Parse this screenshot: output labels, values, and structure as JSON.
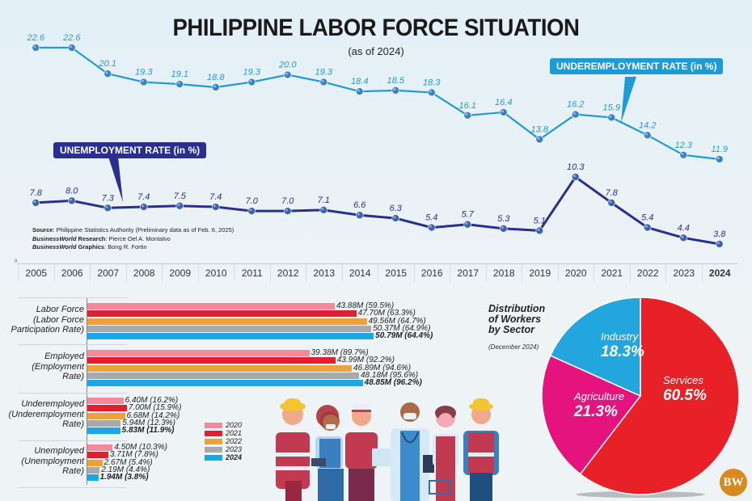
{
  "header": {
    "title": "PHILIPPINE LABOR FORCE SITUATION",
    "subtitle": "(as of 2024)"
  },
  "callouts": {
    "underemployment": "UNDEREMPLOYMENT RATE (in %)",
    "unemployment": "UNEMPLOYMENT RATE (in %)"
  },
  "source": {
    "source_label": "Source",
    "source_text": ": Philippine Statistics Authority (Preliminary data as of Feb. 6, 2025)",
    "research_brand": "BusinessWorld",
    "research_label": " Research",
    "research_text": ": Pierce Oel A. Montalvo",
    "graphics_brand": "BusinessWorld",
    "graphics_label": " Graphics",
    "graphics_text": ": Bong R. Fortin"
  },
  "axis_zero": "0",
  "years": [
    "2005",
    "2006",
    "2007",
    "2008",
    "2009",
    "2010",
    "2011",
    "2012",
    "2013",
    "2014",
    "2015",
    "2016",
    "2017",
    "2018",
    "2019",
    "2020",
    "2021",
    "2022",
    "2023",
    "2024"
  ],
  "bar_groups": [
    {
      "label_line1": "Labor Force",
      "label_line2": "(Labor Force",
      "label_line3": "Participation Rate)"
    },
    {
      "label_line1": "Employed",
      "label_line2": "(Employment",
      "label_line3": "Rate)"
    },
    {
      "label_line1": "Underemployed",
      "label_line2": "(Underemployment",
      "label_line3": "Rate)"
    },
    {
      "label_line1": "Unemployed",
      "label_line2": "(Unemployment",
      "label_line3": "Rate)"
    }
  ],
  "legend": [
    {
      "label": "2020",
      "color": "#f4899e"
    },
    {
      "label": "2021",
      "color": "#e0202e"
    },
    {
      "label": "2022",
      "color": "#eda13a"
    },
    {
      "label": "2023",
      "color": "#a8a9ad"
    },
    {
      "label": "2024",
      "color": "#1aa7e6"
    }
  ],
  "pie": {
    "title_line1": "Distribution",
    "title_line2": "of Workers",
    "title_line3": "by Sector",
    "subtitle": "(December 2024)"
  },
  "logo": "BW",
  "chart_data": [
    {
      "type": "line",
      "title": "PHILIPPINE LABOR FORCE SITUATION (as of 2024)",
      "x": [
        "2005",
        "2006",
        "2007",
        "2008",
        "2009",
        "2010",
        "2011",
        "2012",
        "2013",
        "2014",
        "2015",
        "2016",
        "2017",
        "2018",
        "2019",
        "2020",
        "2021",
        "2022",
        "2023",
        "2024"
      ],
      "xlabel": "",
      "ylabel": "%",
      "grid": false,
      "series": [
        {
          "name": "UNDEREMPLOYMENT RATE (in %)",
          "color": "#1e9bd7",
          "values": [
            22.6,
            22.6,
            20.1,
            19.3,
            19.1,
            18.8,
            19.3,
            20.0,
            19.3,
            18.4,
            18.5,
            18.3,
            16.1,
            16.4,
            13.8,
            16.2,
            15.9,
            14.2,
            12.3,
            11.9
          ],
          "labels": [
            "22.6",
            "22.6",
            "20.1",
            "19.3",
            "19.1",
            "18.8",
            "19.3",
            "20.0",
            "19.3",
            "18.4",
            "18.5",
            "18.3",
            "16.1",
            "16.4",
            "13.8",
            "16.2",
            "15.9",
            "14.2",
            "12.3",
            "11.9"
          ]
        },
        {
          "name": "UNEMPLOYMENT RATE (in %)",
          "color": "#2a2f8f",
          "values": [
            7.8,
            8.0,
            7.3,
            7.4,
            7.5,
            7.4,
            7.0,
            7.0,
            7.1,
            6.6,
            6.3,
            5.4,
            5.7,
            5.3,
            5.1,
            10.3,
            7.8,
            5.4,
            4.4,
            3.8
          ],
          "labels": [
            "7.8",
            "8.0",
            "7.3",
            "7.4",
            "7.5",
            "7.4",
            "7.0",
            "7.0",
            "7.1",
            "6.6",
            "6.3",
            "5.4",
            "5.7",
            "5.3",
            "5.1",
            "10.3",
            "7.8",
            "5.4",
            "4.4",
            "3.8"
          ]
        }
      ]
    },
    {
      "type": "bar",
      "orientation": "horizontal",
      "categories": [
        "Labor Force (Labor Force Participation Rate)",
        "Employed (Employment Rate)",
        "Underemployed (Underemployment Rate)",
        "Unemployed (Unemployment Rate)"
      ],
      "unit": "million persons (rate %)",
      "series": [
        {
          "name": "2020",
          "color": "#f4899e",
          "values": [
            43.88,
            39.38,
            6.4,
            4.5
          ],
          "rates": [
            59.5,
            89.7,
            16.2,
            10.3
          ],
          "labels": [
            "43.88M (59.5%)",
            "39.38M (89.7%)",
            "6.40M (16.2%)",
            "4.50M (10.3%)"
          ]
        },
        {
          "name": "2021",
          "color": "#e0202e",
          "values": [
            47.7,
            43.99,
            7.0,
            3.71
          ],
          "rates": [
            63.3,
            92.2,
            15.9,
            7.8
          ],
          "labels": [
            "47.70M (63.3%)",
            "43.99M (92.2%)",
            "7.00M (15.9%)",
            "3.71M (7.8%)"
          ]
        },
        {
          "name": "2022",
          "color": "#eda13a",
          "values": [
            49.56,
            46.89,
            6.68,
            2.67
          ],
          "rates": [
            64.7,
            94.6,
            14.2,
            5.4
          ],
          "labels": [
            "49.56M (64.7%)",
            "46.89M (94.6%)",
            "6.68M (14.2%)",
            "2.67M (5.4%)"
          ]
        },
        {
          "name": "2023",
          "color": "#a8a9ad",
          "values": [
            50.37,
            48.18,
            5.94,
            2.19
          ],
          "rates": [
            64.9,
            95.6,
            12.3,
            4.4
          ],
          "labels": [
            "50.37M (64.9%)",
            "48.18M (95.6%)",
            "5.94M (12.3%)",
            "2.19M (4.4%)"
          ]
        },
        {
          "name": "2024",
          "color": "#1aa7e6",
          "values": [
            50.79,
            48.85,
            5.83,
            1.94
          ],
          "rates": [
            64.4,
            96.2,
            11.9,
            3.8
          ],
          "labels": [
            "50.79M (64.4%)",
            "48.85M (96.2%)",
            "5.83M (11.9%)",
            "1.94M (3.8%)"
          ]
        }
      ],
      "legend_position": "right"
    },
    {
      "type": "pie",
      "title": "Distribution of Workers by Sector",
      "subtitle": "(December 2024)",
      "slices": [
        {
          "label": "Services",
          "value": 60.5,
          "display": "60.5%",
          "color": "#e82028"
        },
        {
          "label": "Agriculture",
          "value": 21.3,
          "display": "21.3%",
          "color": "#e5137e"
        },
        {
          "label": "Industry",
          "value": 18.3,
          "display": "18.3%",
          "color": "#23a6de"
        }
      ]
    }
  ]
}
